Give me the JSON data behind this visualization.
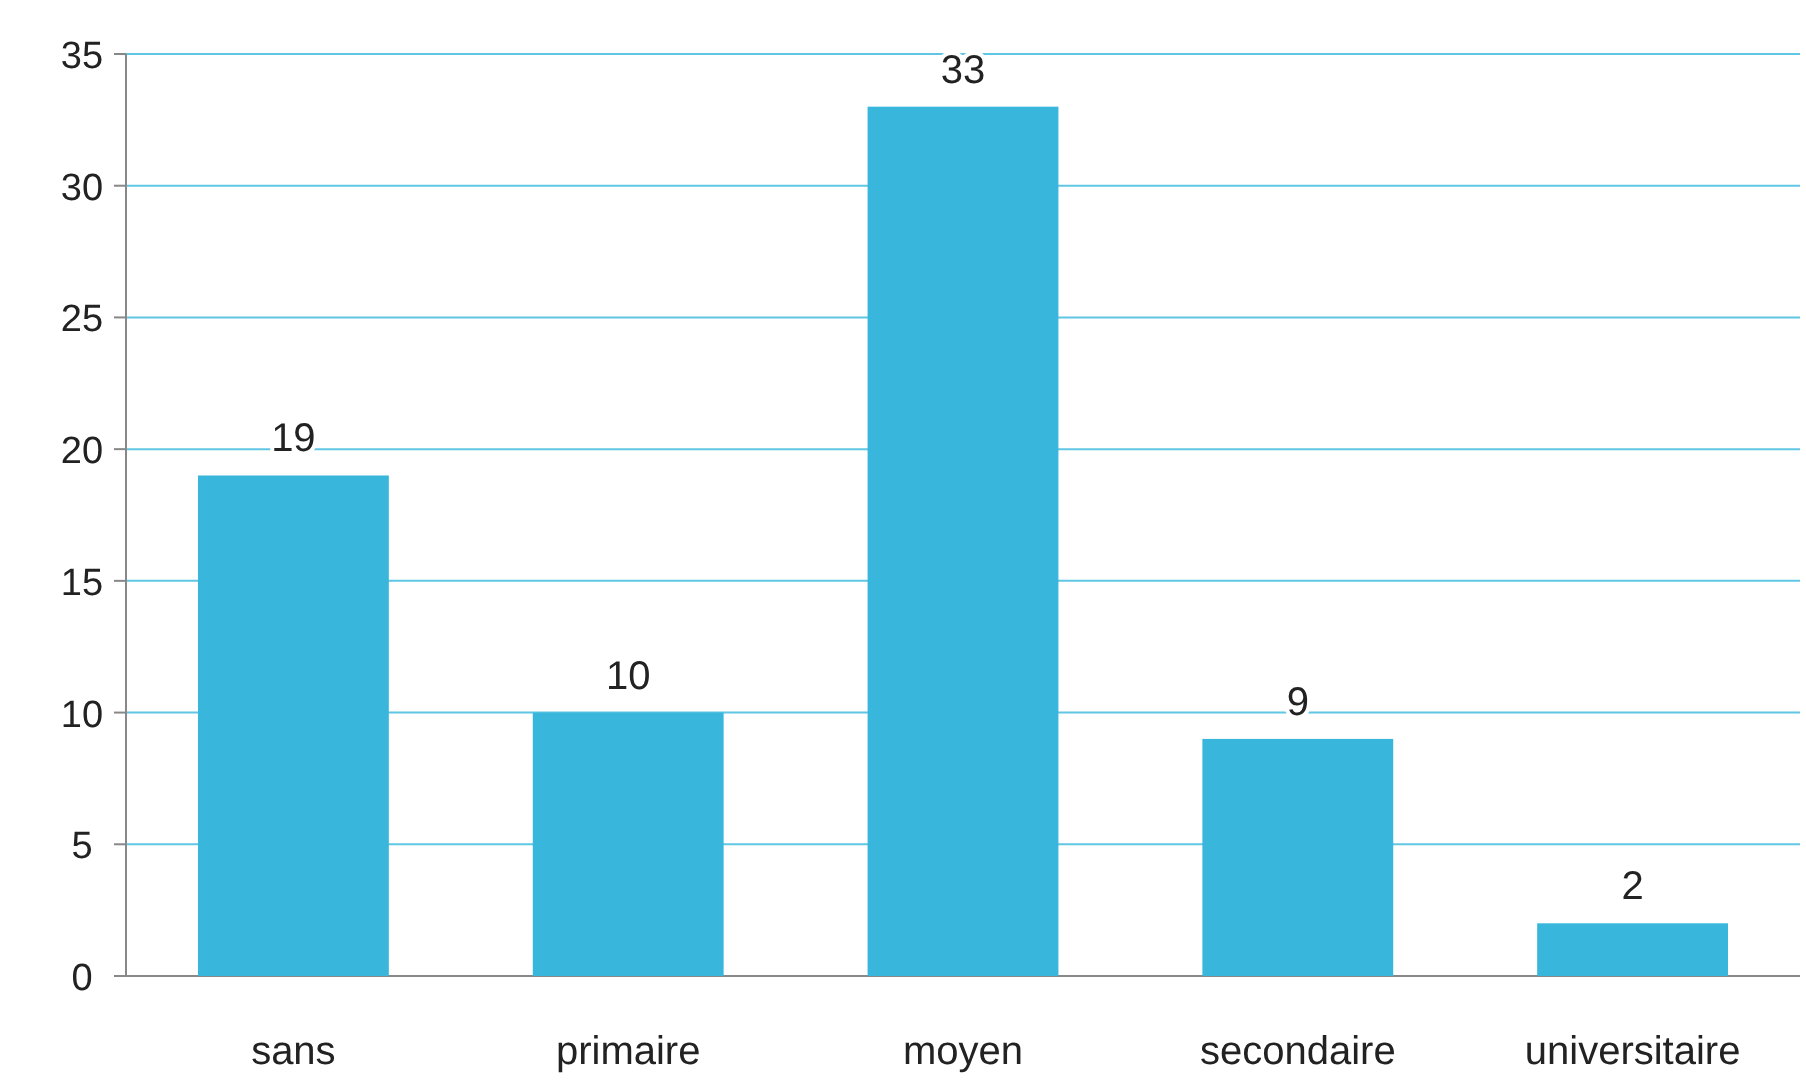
{
  "chart_data": {
    "type": "bar",
    "categories": [
      "sans",
      "primaire",
      "moyen",
      "secondaire",
      "universitaire"
    ],
    "values": [
      19,
      10,
      33,
      9,
      2
    ],
    "color": "#38b6dc",
    "ylim": [
      0,
      35
    ],
    "yticks": [
      0,
      5,
      10,
      15,
      20,
      25,
      30,
      35
    ],
    "grid": "y",
    "data_labels": true
  }
}
